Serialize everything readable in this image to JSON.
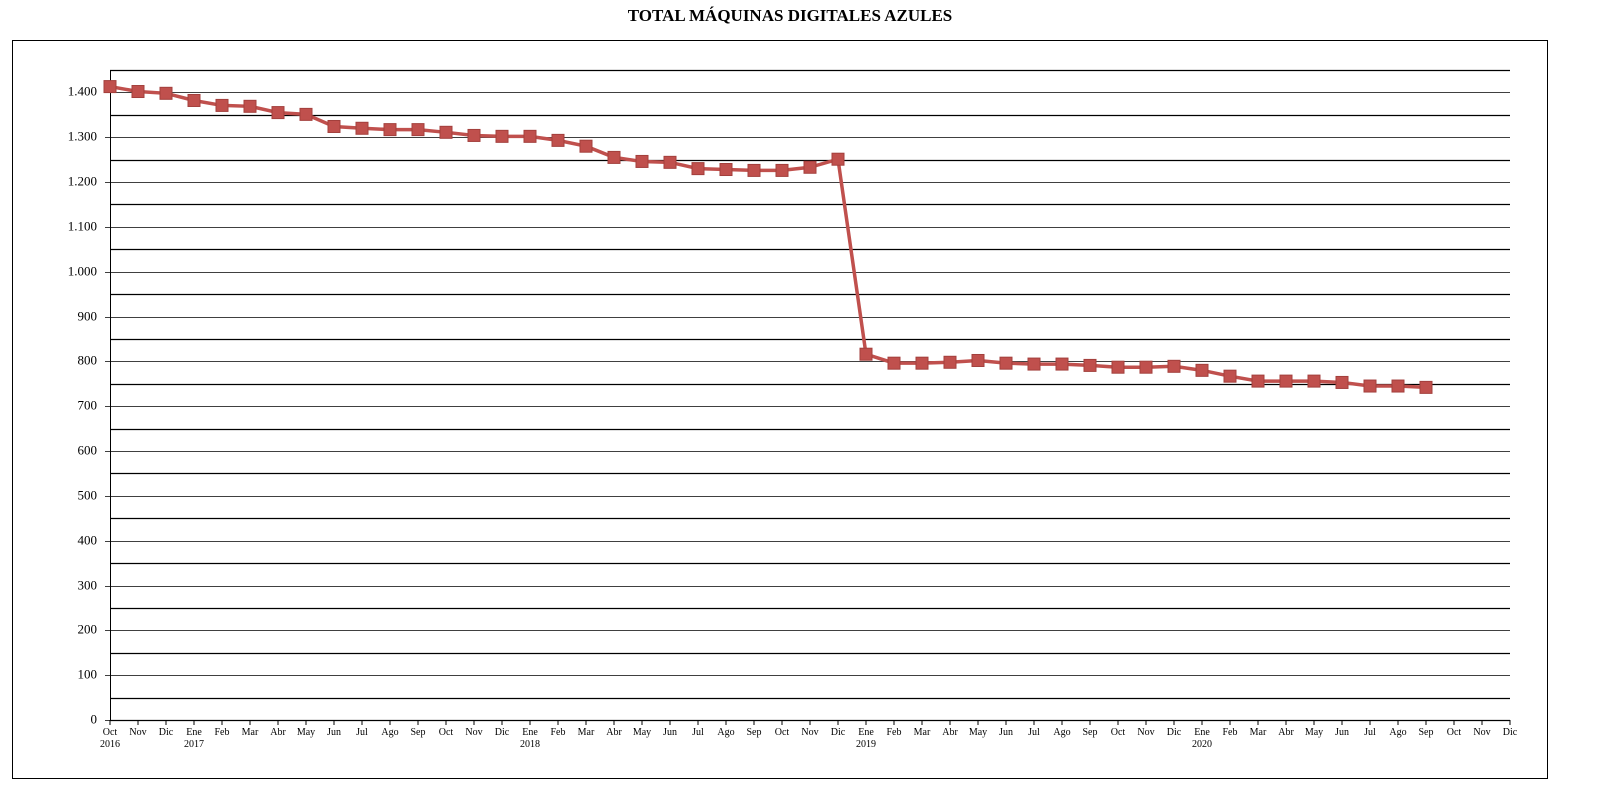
{
  "chart_data": {
    "type": "line",
    "title": "TOTAL MÁQUINAS DIGITALES AZULES",
    "categories": [
      "Oct 2016",
      "Nov",
      "Dic",
      "Ene 2017",
      "Feb",
      "Mar",
      "Abr",
      "May",
      "Jun",
      "Jul",
      "Ago",
      "Sep",
      "Oct",
      "Nov",
      "Dic",
      "Ene 2018",
      "Feb",
      "Mar",
      "Abr",
      "May",
      "Jun",
      "Jul",
      "Ago",
      "Sep",
      "Oct",
      "Nov",
      "Dic",
      "Ene 2019",
      "Feb",
      "Mar",
      "Abr",
      "May",
      "Jun",
      "Jul",
      "Ago",
      "Sep",
      "Oct",
      "Nov",
      "Dic",
      "Ene 2020",
      "Feb",
      "Mar",
      "Abr",
      "May",
      "Jun",
      "Jul",
      "Ago",
      "Sep",
      "Oct",
      "Nov",
      "Dic"
    ],
    "values": [
      1413,
      1402,
      1398,
      1382,
      1371,
      1369,
      1355,
      1351,
      1324,
      1320,
      1317,
      1317,
      1311,
      1304,
      1302,
      1302,
      1293,
      1280,
      1255,
      1246,
      1244,
      1230,
      1228,
      1226,
      1226,
      1233,
      1251,
      816,
      796,
      796,
      798,
      802,
      796,
      794,
      794,
      791,
      787,
      787,
      789,
      780,
      767,
      756,
      756,
      756,
      753,
      745,
      745,
      742,
      null,
      null,
      null
    ],
    "color": "#c0504d",
    "ylim": [
      0,
      1450
    ],
    "yticks": [
      0,
      100,
      200,
      300,
      400,
      500,
      600,
      700,
      800,
      900,
      {
        "value": 1000,
        "label": "1.000"
      },
      {
        "value": 1100,
        "label": "1.100"
      },
      {
        "value": 1200,
        "label": "1.200"
      },
      {
        "value": 1300,
        "label": "1.300"
      },
      {
        "value": 1400,
        "label": "1.400"
      }
    ],
    "minor_grid": [
      50,
      150,
      250,
      350,
      450,
      550,
      650,
      750,
      850,
      950,
      1050,
      1150,
      1250,
      1350,
      1450
    ],
    "grid": true
  }
}
